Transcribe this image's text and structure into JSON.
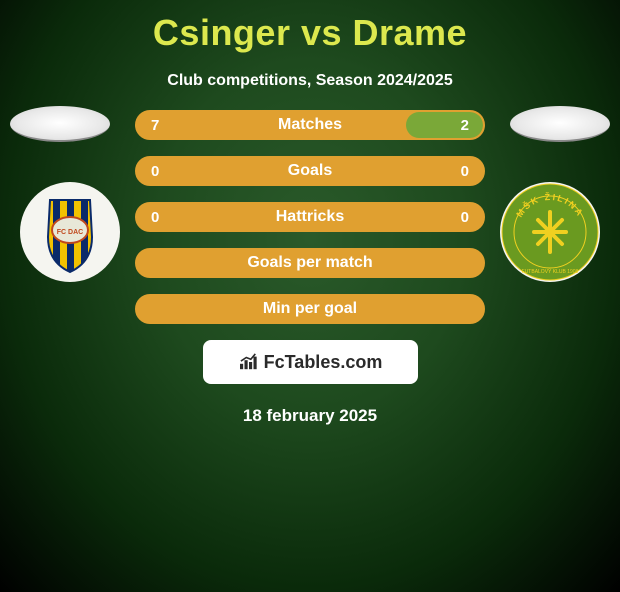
{
  "title": "Csinger vs Drame",
  "subtitle": "Club competitions, Season 2024/2025",
  "date": "18 february 2025",
  "brand": "FcTables.com",
  "colors": {
    "left_team": "#e0a030",
    "right_team": "#7aa838",
    "bar_border": "#e0a030",
    "title_color": "#dce84e"
  },
  "left_badge": {
    "stripes": [
      "#f2c200",
      "#0a2a6a"
    ],
    "text": "FC DAC"
  },
  "right_badge": {
    "bg": "#6a9a20",
    "ring_text": "MŠK ŽILINA",
    "symbol_color": "#f0d020"
  },
  "rows": [
    {
      "label": "Matches",
      "left_val": "7",
      "right_val": "2",
      "left_pct": 77.8,
      "right_pct": 22.2
    },
    {
      "label": "Goals",
      "left_val": "0",
      "right_val": "0",
      "left_pct": 0,
      "right_pct": 0
    },
    {
      "label": "Hattricks",
      "left_val": "0",
      "right_val": "0",
      "left_pct": 0,
      "right_pct": 0
    },
    {
      "label": "Goals per match",
      "left_val": "",
      "right_val": "",
      "left_pct": 0,
      "right_pct": 0
    },
    {
      "label": "Min per goal",
      "left_val": "",
      "right_val": "",
      "left_pct": 0,
      "right_pct": 0
    }
  ]
}
